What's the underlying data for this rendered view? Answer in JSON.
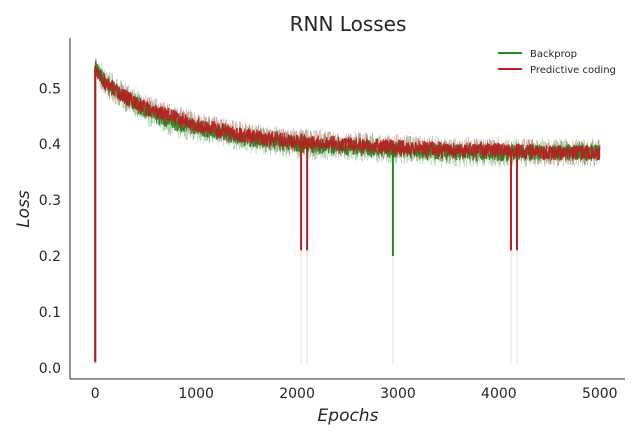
{
  "chart_data": {
    "type": "line",
    "title": "RNN Losses",
    "xlabel": "Epochs",
    "ylabel": "Loss",
    "xlim": [
      -250,
      5250
    ],
    "ylim": [
      -0.02,
      0.59
    ],
    "xticks": [
      0,
      1000,
      2000,
      3000,
      4000,
      5000
    ],
    "xtick_labels": [
      "0",
      "1000",
      "2000",
      "3000",
      "4000",
      "5000"
    ],
    "yticks": [
      0.0,
      0.1,
      0.2,
      0.3,
      0.4,
      0.5
    ],
    "ytick_labels": [
      "0.0",
      "0.1",
      "0.2",
      "0.3",
      "0.4",
      "0.5"
    ],
    "grid": false,
    "legend_position": "top-right",
    "series": [
      {
        "name": "Backprop",
        "color": "#228b22",
        "trend_x": [
          0,
          100,
          250,
          500,
          750,
          1000,
          1250,
          1500,
          2000,
          2500,
          3000,
          3500,
          4000,
          4500,
          5000
        ],
        "trend_y": [
          0.54,
          0.51,
          0.49,
          0.46,
          0.44,
          0.43,
          0.42,
          0.41,
          0.4,
          0.395,
          0.39,
          0.385,
          0.385,
          0.385,
          0.385
        ],
        "spread": 0.02,
        "spikes": [
          {
            "x": 0,
            "y": 0.01
          },
          {
            "x": 2950,
            "y": 0.2
          }
        ]
      },
      {
        "name": "Predictive coding",
        "color": "#b22222",
        "trend_x": [
          0,
          100,
          250,
          500,
          750,
          1000,
          1250,
          1500,
          2000,
          2500,
          3000,
          3500,
          4000,
          4500,
          5000
        ],
        "trend_y": [
          0.535,
          0.51,
          0.49,
          0.465,
          0.45,
          0.435,
          0.425,
          0.415,
          0.405,
          0.4,
          0.395,
          0.39,
          0.39,
          0.385,
          0.385
        ],
        "spread": 0.018,
        "spikes": [
          {
            "x": 0,
            "y": 0.01
          },
          {
            "x": 2040,
            "y": 0.21
          },
          {
            "x": 2100,
            "y": 0.21
          },
          {
            "x": 4120,
            "y": 0.21
          },
          {
            "x": 4180,
            "y": 0.21
          }
        ]
      }
    ]
  }
}
